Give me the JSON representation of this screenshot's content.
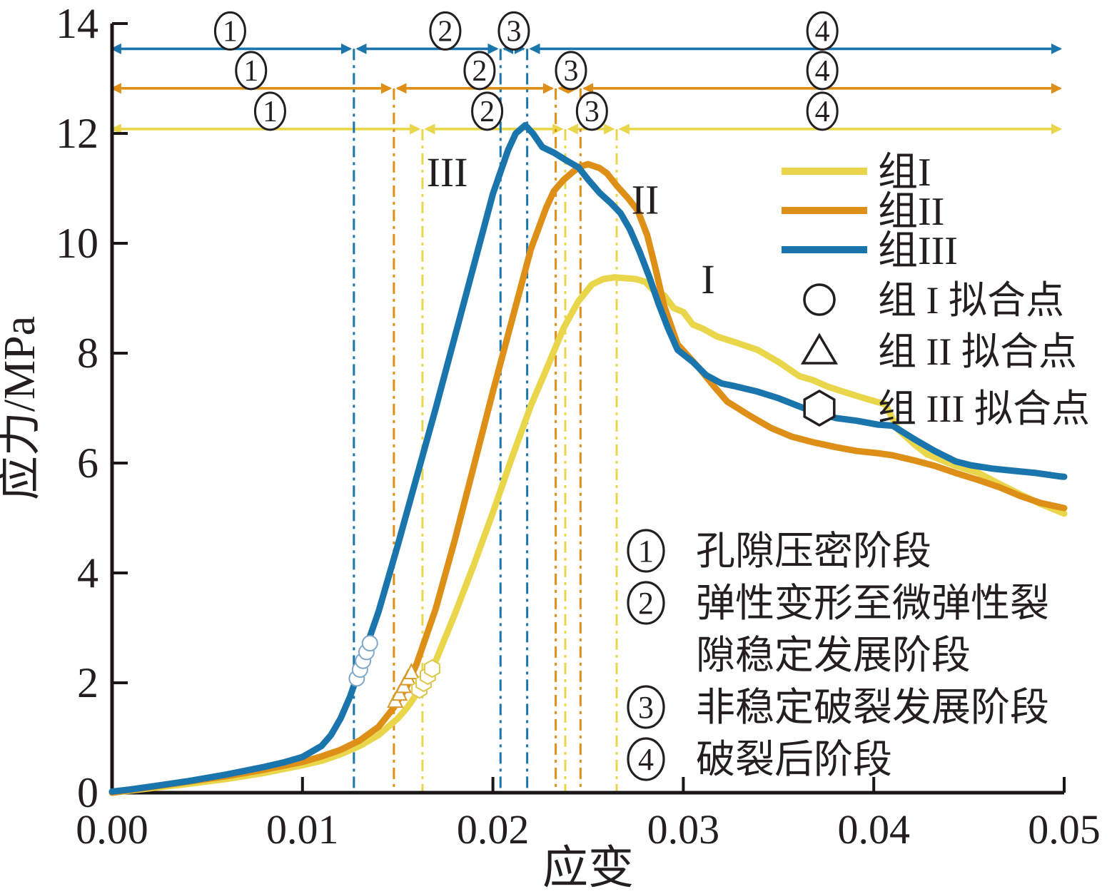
{
  "chart_data": {
    "type": "line",
    "title": "",
    "xlabel": "应变",
    "ylabel": "应力/MPa",
    "xlim": [
      0,
      0.05
    ],
    "ylim": [
      0,
      14
    ],
    "xtick_values": [
      0,
      0.01,
      0.02,
      0.03,
      0.04,
      0.05
    ],
    "xtick_labels": [
      "0.00",
      "0.01",
      "0.02",
      "0.03",
      "0.04",
      "0.05"
    ],
    "ytick_values": [
      0,
      2,
      4,
      6,
      8,
      10,
      12,
      14
    ],
    "ytick_labels": [
      "0",
      "2",
      "4",
      "6",
      "8",
      "10",
      "12",
      "14"
    ],
    "grid": false,
    "axis_color": "#1a1516",
    "text_color": "#231f20",
    "stage_numbers": [
      "1",
      "2",
      "3",
      "4"
    ],
    "series": [
      {
        "name": "组I",
        "color": "#e9d64b",
        "peak_stress": 9.4,
        "stage_line_stress": 12.08,
        "stage_boundaries_strain": [
          0.0163,
          0.0238,
          0.0265
        ],
        "stage_label_strain": [
          0.0083,
          0.0197,
          0.0252,
          0.0373
        ],
        "arrow_end_strain": 0.0498,
        "points": [
          [
            0,
            0
          ],
          [
            0.002,
            0.08
          ],
          [
            0.004,
            0.16
          ],
          [
            0.006,
            0.25
          ],
          [
            0.008,
            0.36
          ],
          [
            0.01,
            0.5
          ],
          [
            0.011,
            0.58
          ],
          [
            0.012,
            0.7
          ],
          [
            0.013,
            0.85
          ],
          [
            0.014,
            1.05
          ],
          [
            0.015,
            1.35
          ],
          [
            0.0155,
            1.55
          ],
          [
            0.0163,
            1.95
          ],
          [
            0.017,
            2.4
          ],
          [
            0.018,
            3.25
          ],
          [
            0.019,
            4.15
          ],
          [
            0.02,
            5.1
          ],
          [
            0.021,
            6.1
          ],
          [
            0.022,
            7.05
          ],
          [
            0.0228,
            7.7
          ],
          [
            0.0237,
            8.45
          ],
          [
            0.0245,
            8.95
          ],
          [
            0.0252,
            9.25
          ],
          [
            0.0258,
            9.35
          ],
          [
            0.0264,
            9.38
          ],
          [
            0.0275,
            9.35
          ],
          [
            0.028,
            9.3
          ],
          [
            0.0285,
            9.12
          ],
          [
            0.029,
            9.05
          ],
          [
            0.0295,
            8.82
          ],
          [
            0.03,
            8.75
          ],
          [
            0.0305,
            8.52
          ],
          [
            0.031,
            8.45
          ],
          [
            0.0318,
            8.3
          ],
          [
            0.0328,
            8.19
          ],
          [
            0.0339,
            8.06
          ],
          [
            0.035,
            7.84
          ],
          [
            0.0361,
            7.58
          ],
          [
            0.0368,
            7.51
          ],
          [
            0.0376,
            7.39
          ],
          [
            0.0383,
            7.31
          ],
          [
            0.0395,
            7.18
          ],
          [
            0.0406,
            7.07
          ],
          [
            0.0413,
            6.6
          ],
          [
            0.0421,
            6.35
          ],
          [
            0.0428,
            6.16
          ],
          [
            0.0436,
            6.05
          ],
          [
            0.0443,
            5.95
          ],
          [
            0.0455,
            5.82
          ],
          [
            0.0466,
            5.62
          ],
          [
            0.0477,
            5.43
          ],
          [
            0.0488,
            5.25
          ],
          [
            0.05,
            5.08
          ]
        ]
      },
      {
        "name": "组II",
        "color": "#de8f17",
        "peak_stress": 11.44,
        "stage_line_stress": 12.82,
        "stage_boundaries_strain": [
          0.0148,
          0.0233,
          0.0246
        ],
        "stage_label_strain": [
          0.0073,
          0.0193,
          0.0241,
          0.0373
        ],
        "arrow_end_strain": 0.0498,
        "points": [
          [
            0,
            0
          ],
          [
            0.002,
            0.1
          ],
          [
            0.004,
            0.2
          ],
          [
            0.006,
            0.3
          ],
          [
            0.008,
            0.42
          ],
          [
            0.01,
            0.56
          ],
          [
            0.011,
            0.66
          ],
          [
            0.012,
            0.78
          ],
          [
            0.013,
            0.95
          ],
          [
            0.014,
            1.2
          ],
          [
            0.0148,
            1.55
          ],
          [
            0.0155,
            1.95
          ],
          [
            0.016,
            2.35
          ],
          [
            0.017,
            3.35
          ],
          [
            0.018,
            4.6
          ],
          [
            0.019,
            5.95
          ],
          [
            0.02,
            7.3
          ],
          [
            0.021,
            8.6
          ],
          [
            0.022,
            9.9
          ],
          [
            0.0228,
            10.65
          ],
          [
            0.0232,
            10.95
          ],
          [
            0.0237,
            11.15
          ],
          [
            0.0242,
            11.3
          ],
          [
            0.0246,
            11.4
          ],
          [
            0.025,
            11.44
          ],
          [
            0.0256,
            11.37
          ],
          [
            0.026,
            11.27
          ],
          [
            0.0265,
            11.05
          ],
          [
            0.0271,
            10.82
          ],
          [
            0.0276,
            10.6
          ],
          [
            0.0281,
            10.15
          ],
          [
            0.0285,
            9.6
          ],
          [
            0.029,
            8.85
          ],
          [
            0.0297,
            8.16
          ],
          [
            0.0308,
            7.74
          ],
          [
            0.0316,
            7.4
          ],
          [
            0.0323,
            7.12
          ],
          [
            0.0335,
            6.86
          ],
          [
            0.0346,
            6.64
          ],
          [
            0.0357,
            6.48
          ],
          [
            0.0368,
            6.38
          ],
          [
            0.038,
            6.29
          ],
          [
            0.0391,
            6.22
          ],
          [
            0.0402,
            6.18
          ],
          [
            0.041,
            6.14
          ],
          [
            0.0421,
            6.05
          ],
          [
            0.0432,
            5.95
          ],
          [
            0.0443,
            5.82
          ],
          [
            0.0455,
            5.69
          ],
          [
            0.0466,
            5.56
          ],
          [
            0.0477,
            5.4
          ],
          [
            0.0488,
            5.27
          ],
          [
            0.05,
            5.18
          ]
        ]
      },
      {
        "name": "组III",
        "color": "#1b75ad",
        "peak_stress": 12.15,
        "stage_line_stress": 13.54,
        "stage_boundaries_strain": [
          0.0127,
          0.0204,
          0.0218
        ],
        "stage_label_strain": [
          0.0062,
          0.0175,
          0.0211,
          0.0373
        ],
        "arrow_end_strain": 0.0498,
        "points": [
          [
            0,
            0.02
          ],
          [
            0.001,
            0.06
          ],
          [
            0.002,
            0.11
          ],
          [
            0.003,
            0.16
          ],
          [
            0.004,
            0.21
          ],
          [
            0.005,
            0.27
          ],
          [
            0.006,
            0.33
          ],
          [
            0.007,
            0.4
          ],
          [
            0.008,
            0.47
          ],
          [
            0.009,
            0.55
          ],
          [
            0.01,
            0.65
          ],
          [
            0.011,
            0.85
          ],
          [
            0.0115,
            1.05
          ],
          [
            0.012,
            1.35
          ],
          [
            0.0125,
            1.75
          ],
          [
            0.0127,
            1.95
          ],
          [
            0.013,
            2.25
          ],
          [
            0.0135,
            2.8
          ],
          [
            0.014,
            3.3
          ],
          [
            0.015,
            4.5
          ],
          [
            0.016,
            5.75
          ],
          [
            0.017,
            7.0
          ],
          [
            0.018,
            8.3
          ],
          [
            0.019,
            9.6
          ],
          [
            0.0195,
            10.25
          ],
          [
            0.02,
            10.9
          ],
          [
            0.0204,
            11.3
          ],
          [
            0.0208,
            11.7
          ],
          [
            0.0212,
            12.0
          ],
          [
            0.0217,
            12.15
          ],
          [
            0.0221,
            12.0
          ],
          [
            0.0226,
            11.75
          ],
          [
            0.0232,
            11.65
          ],
          [
            0.0239,
            11.5
          ],
          [
            0.0245,
            11.38
          ],
          [
            0.025,
            11.16
          ],
          [
            0.0256,
            10.92
          ],
          [
            0.0262,
            10.73
          ],
          [
            0.0267,
            10.55
          ],
          [
            0.0272,
            10.25
          ],
          [
            0.0277,
            9.85
          ],
          [
            0.0282,
            9.4
          ],
          [
            0.0287,
            8.9
          ],
          [
            0.0292,
            8.45
          ],
          [
            0.0297,
            8.06
          ],
          [
            0.0305,
            7.84
          ],
          [
            0.0312,
            7.6
          ],
          [
            0.032,
            7.45
          ],
          [
            0.0327,
            7.4
          ],
          [
            0.0339,
            7.3
          ],
          [
            0.035,
            7.18
          ],
          [
            0.0361,
            7.03
          ],
          [
            0.0368,
            6.94
          ],
          [
            0.038,
            6.82
          ],
          [
            0.0391,
            6.77
          ],
          [
            0.0402,
            6.7
          ],
          [
            0.041,
            6.68
          ],
          [
            0.0421,
            6.44
          ],
          [
            0.0432,
            6.22
          ],
          [
            0.0443,
            6.03
          ],
          [
            0.0451,
            5.96
          ],
          [
            0.0462,
            5.9
          ],
          [
            0.0473,
            5.86
          ],
          [
            0.0485,
            5.82
          ],
          [
            0.0497,
            5.76
          ],
          [
            0.05,
            5.75
          ]
        ]
      }
    ],
    "curve_labels": [
      {
        "text": "III",
        "strain": 0.0176,
        "stress": 11.3
      },
      {
        "text": "II",
        "strain": 0.028,
        "stress": 10.8
      },
      {
        "text": "I",
        "strain": 0.0313,
        "stress": 9.35
      }
    ],
    "fit_markers": [
      {
        "shape": "circle",
        "outline": "#7fa8c9",
        "points": [
          [
            0.01285,
            2.08
          ],
          [
            0.01302,
            2.24
          ],
          [
            0.01318,
            2.4
          ],
          [
            0.01336,
            2.56
          ],
          [
            0.01354,
            2.72
          ]
        ]
      },
      {
        "shape": "triangle",
        "outline": "#d8992b",
        "points": [
          [
            0.01487,
            1.66
          ],
          [
            0.01509,
            1.79
          ],
          [
            0.01531,
            1.93
          ],
          [
            0.01553,
            2.07
          ],
          [
            0.01572,
            2.18
          ]
        ]
      },
      {
        "shape": "hexagon",
        "outline": "#ddc84a",
        "points": [
          [
            0.01614,
            1.88
          ],
          [
            0.01636,
            2.0
          ],
          [
            0.01658,
            2.13
          ],
          [
            0.01681,
            2.26
          ]
        ]
      }
    ],
    "legend": {
      "line_entries": [
        {
          "label": "组I",
          "color": "#e9d64b"
        },
        {
          "label": "组II",
          "color": "#de8f17"
        },
        {
          "label": "组III",
          "color": "#1b75ad"
        }
      ],
      "marker_entries": [
        {
          "shape": "circle",
          "label": "组 I 拟合点"
        },
        {
          "shape": "triangle",
          "label": "组 II 拟合点"
        },
        {
          "shape": "hexagon",
          "label": "组 III 拟合点"
        }
      ]
    },
    "stage_legend": [
      {
        "num": "1",
        "text": "孔隙压密阶段"
      },
      {
        "num": "2",
        "text": "弹性变形至微弹性裂"
      },
      {
        "num": "",
        "text": "隙稳定发展阶段"
      },
      {
        "num": "3",
        "text": "非稳定破裂发展阶段"
      },
      {
        "num": "4",
        "text": "破裂后阶段"
      }
    ]
  }
}
